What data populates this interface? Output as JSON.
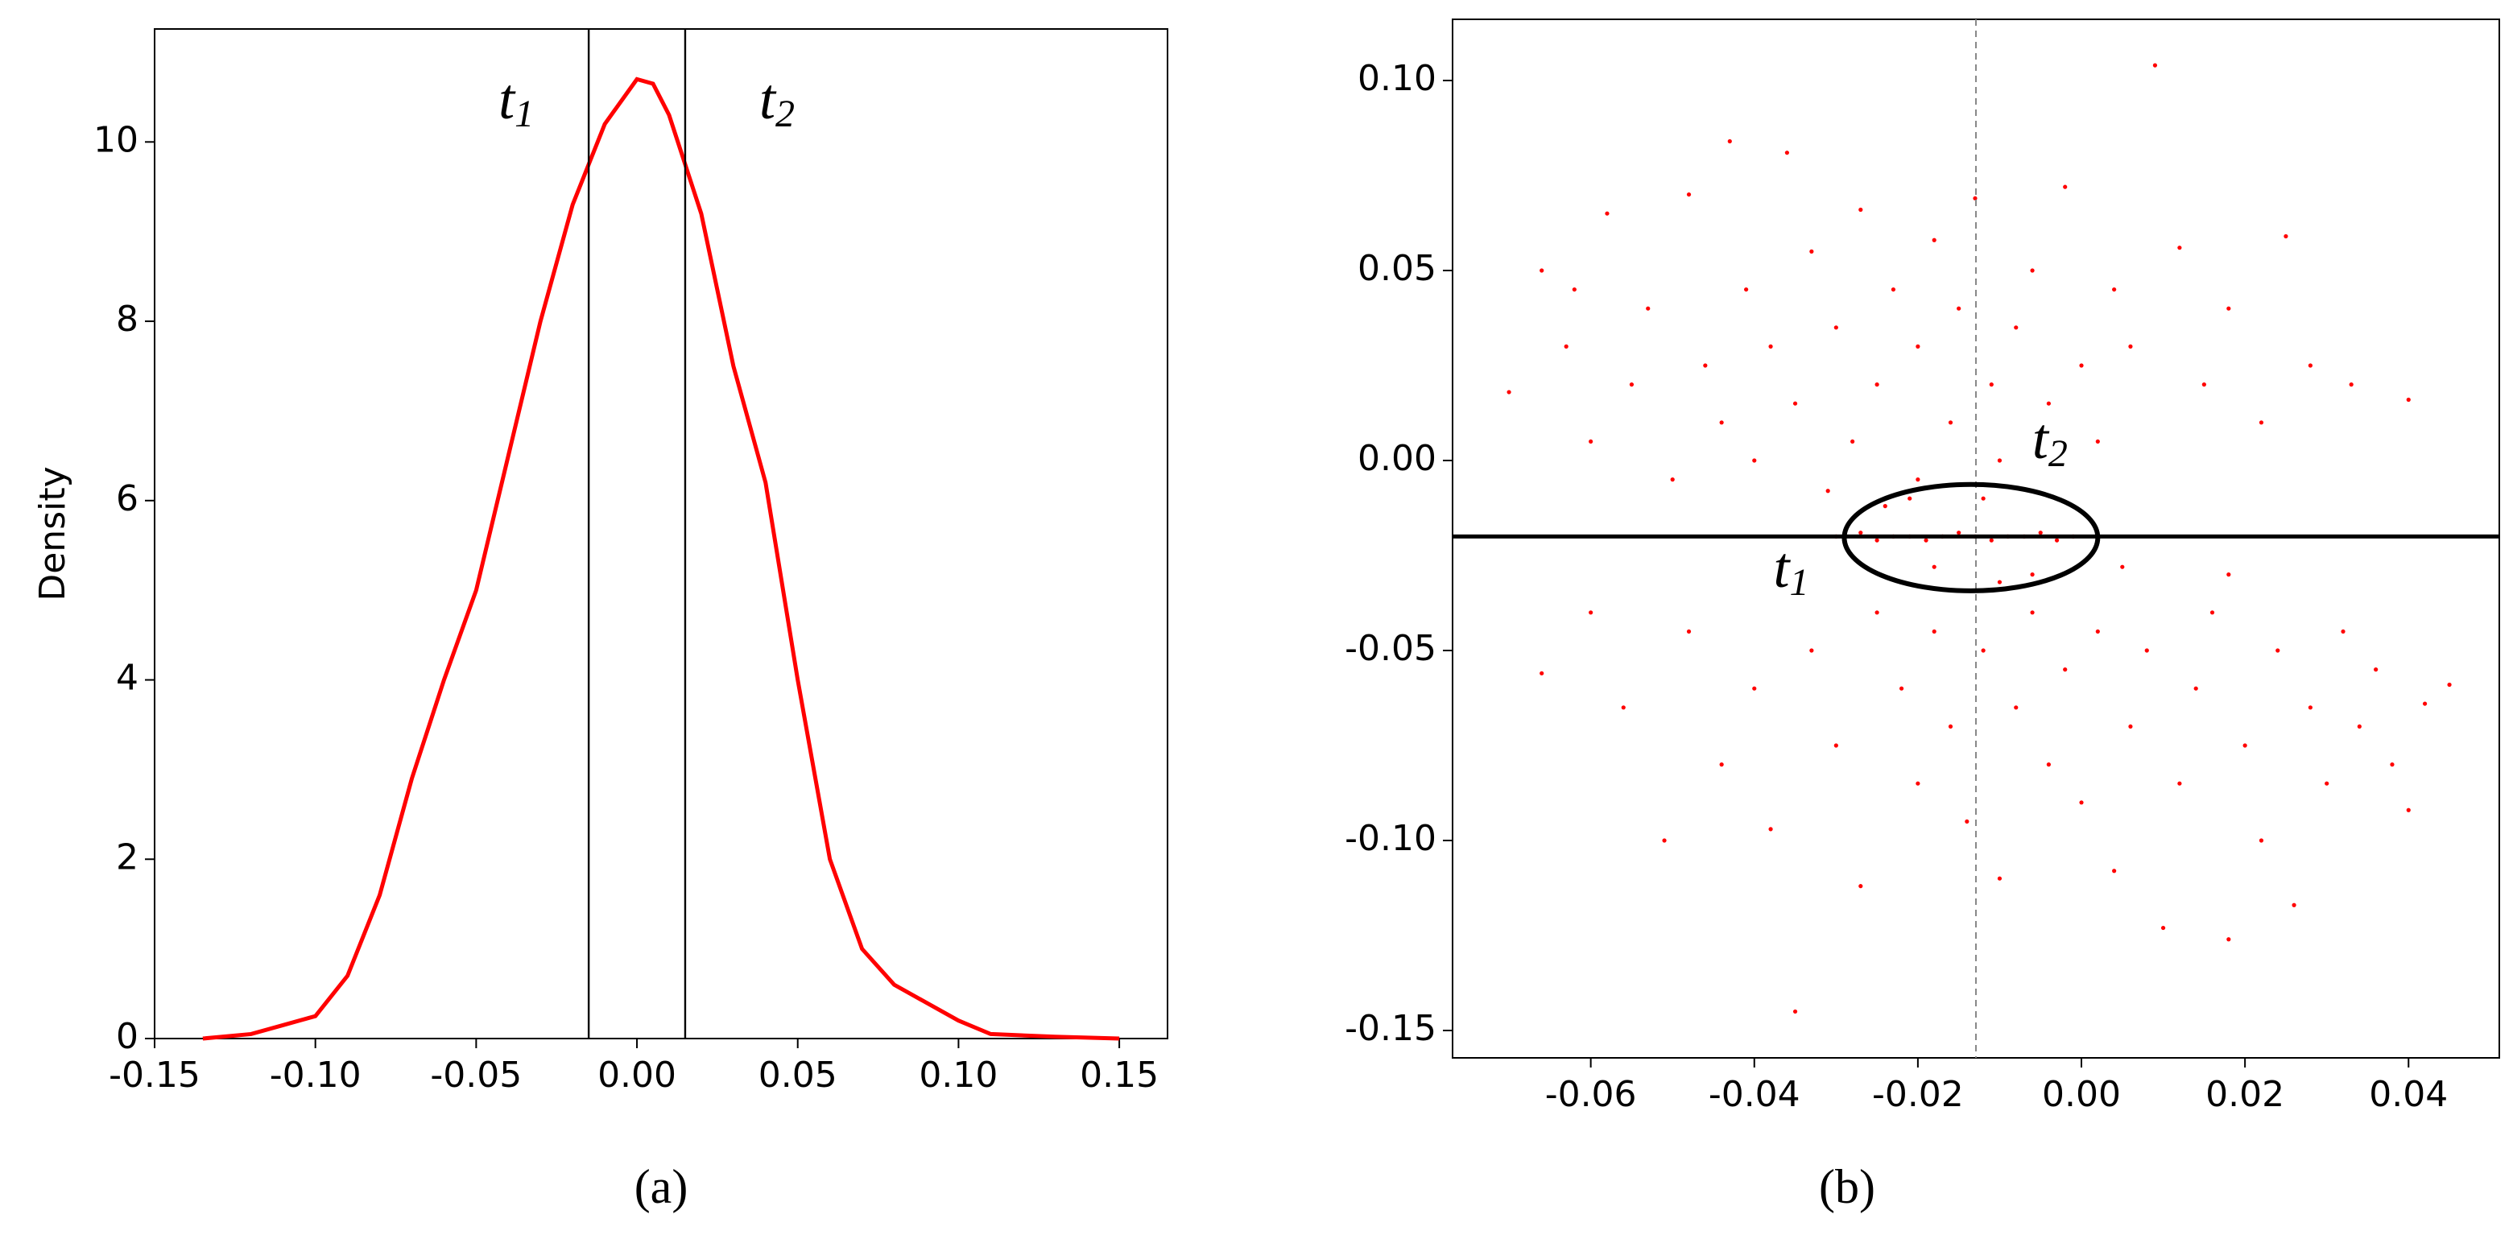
{
  "chart_data": [
    {
      "type": "line",
      "caption": "(a)",
      "ylabel": "Density",
      "color": "#ff0000",
      "xlim": [
        -0.15,
        0.165
      ],
      "ylim": [
        0,
        11.26
      ],
      "xticks": [
        {
          "value": -0.15,
          "label": "-0.15"
        },
        {
          "value": -0.1,
          "label": "-0.10"
        },
        {
          "value": -0.05,
          "label": "-0.05"
        },
        {
          "value": 0,
          "label": "0.00"
        },
        {
          "value": 0.05,
          "label": "0.05"
        },
        {
          "value": 0.1,
          "label": "0.10"
        },
        {
          "value": 0.15,
          "label": "0.15"
        }
      ],
      "yticks": [
        0,
        2,
        4,
        6,
        8,
        10
      ],
      "x": [
        -0.135,
        -0.12,
        -0.11,
        -0.1,
        -0.09,
        -0.08,
        -0.07,
        -0.06,
        -0.05,
        -0.04,
        -0.03,
        -0.02,
        -0.01,
        0,
        0.005,
        0.01,
        0.02,
        0.03,
        0.04,
        0.05,
        0.06,
        0.07,
        0.08,
        0.09,
        0.1,
        0.11,
        0.13,
        0.15
      ],
      "values": [
        0,
        0.05,
        0.15,
        0.25,
        0.7,
        1.6,
        2.9,
        4.0,
        5.0,
        6.5,
        8.0,
        9.3,
        10.2,
        10.7,
        10.65,
        10.3,
        9.2,
        7.5,
        6.2,
        4.0,
        2.0,
        1.0,
        0.6,
        0.4,
        0.2,
        0.05,
        0.02,
        0
      ],
      "vlines": [
        -0.015,
        0.015
      ],
      "annotations": [
        {
          "base": "t",
          "sub": "1"
        },
        {
          "base": "t",
          "sub": "2"
        }
      ]
    },
    {
      "type": "scatter",
      "caption": "(b)",
      "color": "#ff0000",
      "xlim": [
        -0.0769,
        0.0511
      ],
      "ylim": [
        -0.1572,
        0.1161
      ],
      "xticks": [
        {
          "value": -0.06,
          "label": "-0.06"
        },
        {
          "value": -0.04,
          "label": "-0.04"
        },
        {
          "value": -0.02,
          "label": "-0.02"
        },
        {
          "value": 0,
          "label": "0.00"
        },
        {
          "value": 0.02,
          "label": "0.02"
        },
        {
          "value": 0.04,
          "label": "0.04"
        }
      ],
      "yticks": [
        {
          "value": 0.1,
          "label": "0.10"
        },
        {
          "value": 0.05,
          "label": "0.05"
        },
        {
          "value": 0,
          "label": "0.00"
        },
        {
          "value": -0.05,
          "label": "-0.05"
        },
        {
          "value": -0.1,
          "label": "-0.10"
        },
        {
          "value": -0.15,
          "label": "-0.15"
        }
      ],
      "hline": -0.02,
      "dashed_vline": -0.0129,
      "ellipse": {
        "cx": -0.0135,
        "cy": -0.0203,
        "rx": 0.0155,
        "ry": 0.014
      },
      "annotations": [
        {
          "base": "t",
          "sub": "1"
        },
        {
          "base": "t",
          "sub": "2"
        }
      ],
      "x": [
        -0.07,
        -0.066,
        -0.063,
        -0.06,
        -0.058,
        -0.055,
        -0.053,
        -0.05,
        -0.048,
        -0.046,
        -0.044,
        -0.043,
        -0.041,
        -0.04,
        -0.038,
        -0.036,
        -0.035,
        -0.033,
        -0.031,
        -0.03,
        -0.028,
        -0.027,
        -0.025,
        -0.023,
        -0.021,
        -0.02,
        -0.018,
        -0.016,
        -0.015,
        -0.013,
        -0.011,
        -0.01,
        -0.008,
        -0.006,
        -0.004,
        -0.002,
        0.0,
        0.002,
        0.004,
        0.006,
        0.009,
        0.012,
        0.015,
        0.018,
        0.022,
        0.025,
        0.028,
        0.033,
        0.04,
        -0.062,
        -0.066,
        -0.06,
        -0.056,
        -0.051,
        -0.048,
        -0.044,
        -0.04,
        -0.038,
        -0.035,
        -0.033,
        -0.03,
        -0.027,
        -0.025,
        -0.022,
        -0.02,
        -0.018,
        -0.016,
        -0.014,
        -0.012,
        -0.01,
        -0.008,
        -0.006,
        -0.004,
        -0.002,
        0.0,
        0.002,
        0.004,
        0.006,
        0.008,
        0.01,
        0.012,
        0.014,
        0.016,
        0.018,
        0.02,
        0.022,
        0.024,
        0.026,
        0.028,
        0.03,
        0.032,
        0.034,
        0.036,
        0.038,
        0.04,
        0.042,
        0.045,
        0.018,
        0.005,
        -0.01,
        -0.03,
        -0.027,
        -0.025,
        -0.023,
        -0.021,
        -0.019,
        -0.017,
        -0.015,
        -0.013,
        -0.011,
        -0.009,
        -0.007,
        -0.005,
        -0.003,
        -0.001,
        -0.024,
        -0.018,
        -0.012,
        -0.006,
        -0.02
      ],
      "values": [
        0.018,
        0.05,
        0.03,
        0.005,
        0.065,
        0.02,
        0.04,
        -0.005,
        0.07,
        0.025,
        0.01,
        0.084,
        0.045,
        0.0,
        0.03,
        0.081,
        0.015,
        0.055,
        -0.008,
        0.035,
        0.005,
        0.066,
        0.02,
        0.045,
        -0.01,
        0.03,
        0.058,
        0.01,
        0.04,
        0.069,
        0.02,
        0.0,
        0.035,
        0.05,
        0.015,
        0.072,
        0.025,
        0.005,
        0.045,
        0.03,
        0.104,
        0.056,
        0.02,
        0.04,
        0.01,
        0.059,
        0.025,
        0.02,
        0.016,
        0.045,
        -0.056,
        -0.04,
        -0.065,
        -0.1,
        -0.045,
        -0.08,
        -0.06,
        -0.097,
        -0.145,
        -0.05,
        -0.075,
        -0.112,
        -0.04,
        -0.06,
        -0.085,
        -0.045,
        -0.07,
        -0.095,
        -0.05,
        -0.11,
        -0.065,
        -0.04,
        -0.08,
        -0.055,
        -0.09,
        -0.045,
        -0.108,
        -0.07,
        -0.05,
        -0.123,
        -0.085,
        -0.06,
        -0.04,
        -0.126,
        -0.075,
        -0.1,
        -0.05,
        -0.117,
        -0.065,
        -0.085,
        -0.045,
        -0.07,
        -0.055,
        -0.08,
        -0.092,
        -0.064,
        -0.059,
        -0.03,
        -0.028,
        -0.032,
        -0.02,
        -0.019,
        -0.021,
        -0.02,
        -0.02,
        -0.021,
        -0.02,
        -0.019,
        -0.02,
        -0.021,
        -0.02,
        -0.02,
        -0.019,
        -0.021,
        -0.02,
        -0.012,
        -0.028,
        -0.01,
        -0.03,
        -0.005
      ]
    }
  ]
}
